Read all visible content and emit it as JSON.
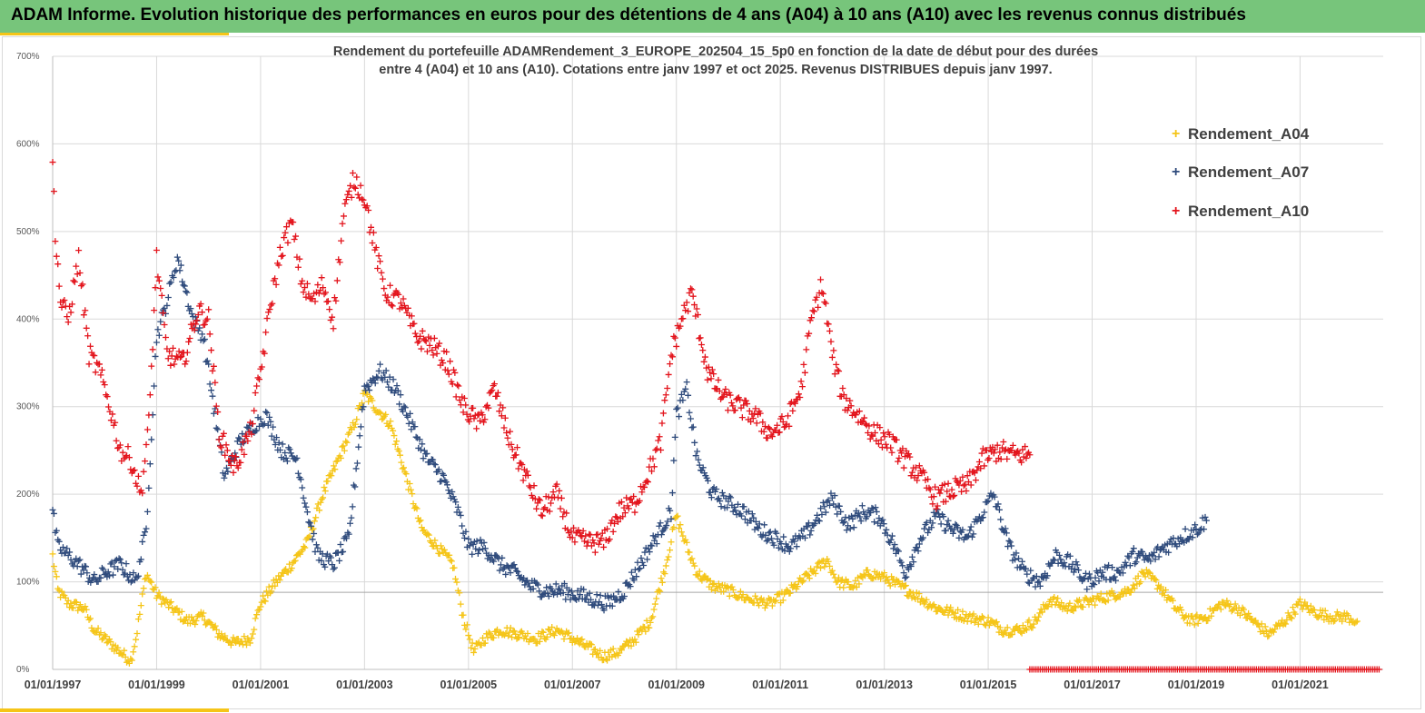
{
  "header": {
    "title": "ADAM Informe. Evolution historique des performances en euros pour des détentions de 4 ans (A04) à 10 ans (A10) avec les revenus connus distribués"
  },
  "colors": {
    "a04": "#f5c518",
    "a07": "#2f4b7c",
    "a10": "#e3141c",
    "header_bg": "#77c57b",
    "accent": "#f5c518",
    "grid": "#d9d9d9"
  },
  "chart_data": {
    "type": "scatter",
    "title_lines": [
      "Rendement du portefeuille ADAMRendement_3_EUROPE_202504_15_5p0  en fonction de la date de début pour des durées",
      "entre 4 (A04) et 10 ans (A10). Cotations entre janv 1997 et oct 2025. Revenus DISTRIBUES depuis janv 1997."
    ],
    "xlabel": "",
    "ylabel": "",
    "x_range": [
      1997.0,
      2022.6
    ],
    "ylim": [
      0,
      700
    ],
    "y_ticks": [
      0,
      100,
      200,
      300,
      400,
      500,
      600,
      700
    ],
    "y_tick_labels": [
      "0%",
      "100%",
      "200%",
      "300%",
      "400%",
      "500%",
      "600%",
      "700%"
    ],
    "x_ticks": [
      1997,
      1999,
      2001,
      2003,
      2005,
      2007,
      2009,
      2011,
      2013,
      2015,
      2017,
      2019,
      2021
    ],
    "x_tick_labels": [
      "01/01/1997",
      "01/01/1999",
      "01/01/2001",
      "01/01/2003",
      "01/01/2005",
      "01/01/2007",
      "01/01/2009",
      "01/01/2011",
      "01/01/2013",
      "01/01/2015",
      "01/01/2017",
      "01/01/2019",
      "01/01/2021"
    ],
    "reference_line_y": 88,
    "grid": true,
    "legend_position": "top-right",
    "series": [
      {
        "name": "Rendement_A04",
        "x": [
          1997.0,
          1997.1,
          1997.3,
          1997.6,
          1997.8,
          1998.0,
          1998.3,
          1998.5,
          1998.6,
          1998.8,
          1999.0,
          1999.3,
          1999.6,
          1999.9,
          2000.2,
          2000.5,
          2000.8,
          2001.0,
          2001.3,
          2001.6,
          2001.9,
          2002.2,
          2002.5,
          2002.8,
          2003.0,
          2003.2,
          2003.5,
          2003.8,
          2004.1,
          2004.4,
          2004.7,
          2004.9,
          2005.1,
          2005.3,
          2005.6,
          2006.0,
          2006.3,
          2006.7,
          2007.0,
          2007.3,
          2007.6,
          2007.9,
          2008.2,
          2008.5,
          2008.8,
          2009.0,
          2009.2,
          2009.4,
          2009.7,
          2010.0,
          2010.4,
          2010.8,
          2011.1,
          2011.4,
          2011.7,
          2011.9,
          2012.1,
          2012.4,
          2012.7,
          2013.0,
          2013.3,
          2013.6,
          2014.0,
          2014.3,
          2014.6,
          2015.0,
          2015.3,
          2015.6,
          2015.9,
          2016.2,
          2016.5,
          2016.8,
          2017.1,
          2017.4,
          2017.7,
          2018.0,
          2018.3,
          2018.6,
          2018.9,
          2019.2,
          2019.5,
          2019.8,
          2020.1,
          2020.4,
          2020.7,
          2021.0,
          2021.3,
          2021.6,
          2021.9,
          2022.1
        ],
        "values": [
          130,
          90,
          75,
          70,
          45,
          35,
          20,
          10,
          35,
          110,
          85,
          70,
          55,
          60,
          40,
          30,
          35,
          75,
          100,
          120,
          145,
          200,
          240,
          280,
          315,
          300,
          280,
          220,
          160,
          140,
          120,
          60,
          20,
          35,
          45,
          40,
          35,
          45,
          35,
          25,
          15,
          20,
          35,
          55,
          120,
          175,
          140,
          110,
          95,
          90,
          80,
          75,
          85,
          100,
          115,
          125,
          100,
          95,
          110,
          105,
          95,
          85,
          70,
          65,
          60,
          55,
          45,
          45,
          55,
          80,
          70,
          75,
          80,
          85,
          90,
          110,
          95,
          70,
          55,
          60,
          75,
          70,
          55,
          40,
          55,
          75,
          65,
          60,
          60,
          55
        ]
      },
      {
        "name": "Rendement_A07",
        "x": [
          1997.0,
          1997.1,
          1997.3,
          1997.5,
          1997.8,
          1998.0,
          1998.3,
          1998.6,
          1998.8,
          1999.0,
          1999.2,
          1999.4,
          1999.7,
          1999.9,
          2000.1,
          2000.3,
          2000.6,
          2000.9,
          2001.1,
          2001.4,
          2001.7,
          2001.9,
          2002.1,
          2002.4,
          2002.7,
          2003.0,
          2003.3,
          2003.6,
          2003.9,
          2004.2,
          2004.5,
          2004.8,
          2005.0,
          2005.3,
          2005.6,
          2005.9,
          2006.2,
          2006.5,
          2006.8,
          2007.1,
          2007.4,
          2007.7,
          2008.0,
          2008.3,
          2008.6,
          2008.9,
          2009.0,
          2009.2,
          2009.4,
          2009.7,
          2010.0,
          2010.3,
          2010.6,
          2010.9,
          2011.2,
          2011.5,
          2011.8,
          2012.0,
          2012.3,
          2012.6,
          2012.9,
          2013.2,
          2013.4,
          2013.7,
          2014.0,
          2014.3,
          2014.6,
          2014.9,
          2015.1,
          2015.4,
          2015.7,
          2016.0,
          2016.3,
          2016.6,
          2016.9,
          2017.2,
          2017.5,
          2017.8,
          2018.1,
          2018.4,
          2018.7,
          2019.0,
          2019.2
        ],
        "values": [
          180,
          140,
          130,
          120,
          100,
          110,
          120,
          100,
          160,
          380,
          420,
          470,
          400,
          380,
          300,
          220,
          260,
          280,
          290,
          250,
          240,
          180,
          130,
          120,
          150,
          320,
          340,
          320,
          280,
          240,
          220,
          180,
          140,
          140,
          120,
          110,
          95,
          90,
          90,
          85,
          80,
          75,
          90,
          120,
          150,
          180,
          290,
          320,
          240,
          200,
          190,
          180,
          160,
          150,
          140,
          155,
          180,
          195,
          165,
          180,
          175,
          140,
          110,
          150,
          175,
          160,
          150,
          180,
          200,
          140,
          110,
          100,
          130,
          120,
          100,
          110,
          110,
          130,
          125,
          140,
          150,
          160,
          170
        ]
      },
      {
        "name": "Rendement_A10",
        "x": [
          1997.0,
          1997.05,
          1997.15,
          1997.3,
          1997.5,
          1997.7,
          1997.9,
          1998.1,
          1998.3,
          1998.5,
          1998.7,
          1998.85,
          1999.0,
          1999.2,
          1999.5,
          1999.8,
          2000.0,
          2000.2,
          2000.5,
          2000.8,
          2001.0,
          2001.2,
          2001.4,
          2001.6,
          2001.8,
          2002.0,
          2002.2,
          2002.4,
          2002.6,
          2002.8,
          2003.0,
          2003.2,
          2003.4,
          2003.7,
          2004.0,
          2004.3,
          2004.6,
          2004.9,
          2005.2,
          2005.5,
          2005.8,
          2006.1,
          2006.4,
          2006.7,
          2007.0,
          2007.3,
          2007.6,
          2007.9,
          2008.2,
          2008.5,
          2008.7,
          2008.9,
          2009.1,
          2009.3,
          2009.6,
          2009.9,
          2010.2,
          2010.5,
          2010.8,
          2011.1,
          2011.4,
          2011.6,
          2011.8,
          2012.0,
          2012.2,
          2012.5,
          2012.8,
          2013.1,
          2013.4,
          2013.7,
          2014.0,
          2014.3,
          2014.6,
          2014.9,
          2015.2,
          2015.5,
          2015.8
        ],
        "values": [
          580,
          500,
          420,
          400,
          470,
          360,
          340,
          300,
          250,
          240,
          200,
          280,
          470,
          360,
          350,
          410,
          400,
          270,
          230,
          270,
          340,
          420,
          480,
          510,
          440,
          420,
          440,
          400,
          520,
          560,
          540,
          480,
          430,
          420,
          380,
          370,
          350,
          300,
          280,
          320,
          260,
          220,
          180,
          200,
          150,
          145,
          145,
          180,
          190,
          230,
          260,
          360,
          400,
          430,
          340,
          310,
          300,
          290,
          270,
          280,
          320,
          400,
          440,
          360,
          310,
          290,
          270,
          260,
          240,
          220,
          195,
          205,
          210,
          240,
          250,
          245,
          245
        ]
      }
    ]
  }
}
